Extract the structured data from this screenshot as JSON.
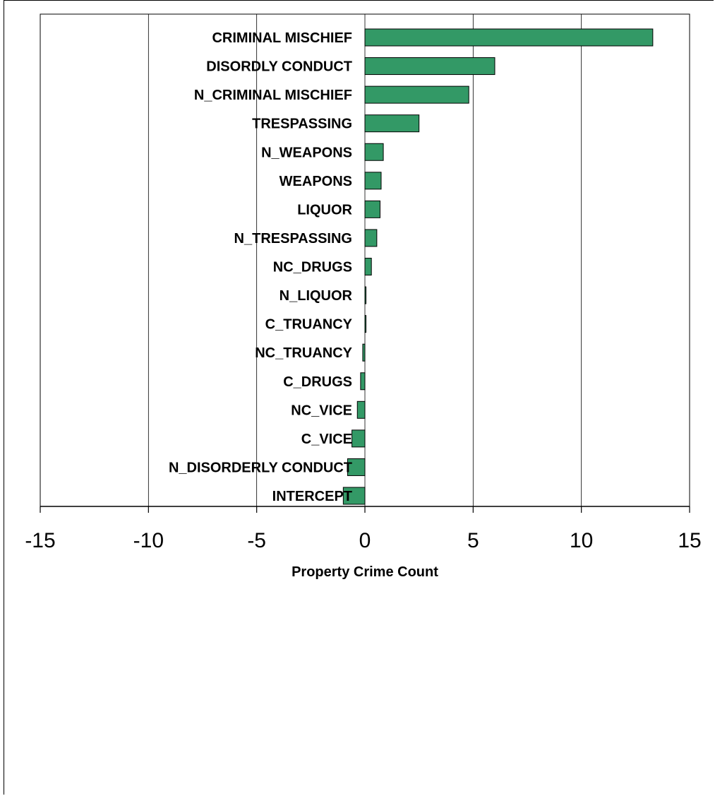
{
  "chart_data": {
    "type": "bar",
    "orientation": "horizontal",
    "title": "",
    "xlabel": "Property Crime Count",
    "ylabel": "",
    "xlim": [
      -15,
      15
    ],
    "xticks": [
      -15,
      -10,
      -5,
      0,
      5,
      10,
      15
    ],
    "grid": true,
    "legend": "none",
    "bar_color": "#339966",
    "categories": [
      "CRIMINAL MISCHIEF",
      "DISORDLY CONDUCT",
      "N_CRIMINAL MISCHIEF",
      "TRESPASSING",
      "N_WEAPONS",
      "WEAPONS",
      "LIQUOR",
      "N_TRESPASSING",
      "NC_DRUGS",
      "N_LIQUOR",
      "C_TRUANCY",
      "NC_TRUANCY",
      "C_DRUGS",
      "NC_VICE",
      "C_VICE",
      "N_DISORDERLY CONDUCT",
      "INTERCEPT"
    ],
    "values": [
      13.3,
      6.0,
      4.8,
      2.5,
      0.85,
      0.75,
      0.7,
      0.55,
      0.3,
      0.05,
      0.05,
      -0.1,
      -0.2,
      -0.35,
      -0.6,
      -0.8,
      -1.0
    ]
  }
}
